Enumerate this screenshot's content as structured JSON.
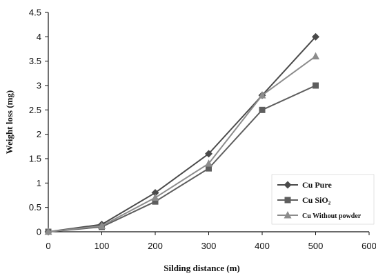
{
  "chart_data": {
    "type": "line",
    "title": "",
    "xlabel": "Silding distance (m)",
    "ylabel": "Weight loss (mg)",
    "xlim": [
      0,
      600
    ],
    "ylim": [
      0,
      4.5
    ],
    "x_ticks": [
      "0",
      "100",
      "200",
      "300",
      "400",
      "500",
      "600"
    ],
    "y_ticks": [
      "0",
      "0.5",
      "1",
      "1.5",
      "2",
      "2.5",
      "3",
      "3.5",
      "4",
      "4.5"
    ],
    "grid": false,
    "legend_position": "bottom-right",
    "x": [
      0,
      100,
      200,
      300,
      400,
      500
    ],
    "series": [
      {
        "name": "Cu Pure",
        "marker": "diamond",
        "color": "#4a4a4a",
        "values": [
          0,
          0.15,
          0.8,
          1.6,
          2.8,
          4.0
        ]
      },
      {
        "name": "Cu SiO₂",
        "marker": "square",
        "color": "#5e5e5e",
        "values": [
          0,
          0.1,
          0.62,
          1.3,
          2.5,
          3.0
        ]
      },
      {
        "name": "Cu Without powder",
        "marker": "triangle",
        "color": "#8c8c8c",
        "values": [
          0,
          0.12,
          0.7,
          1.4,
          2.8,
          3.6
        ]
      }
    ]
  }
}
